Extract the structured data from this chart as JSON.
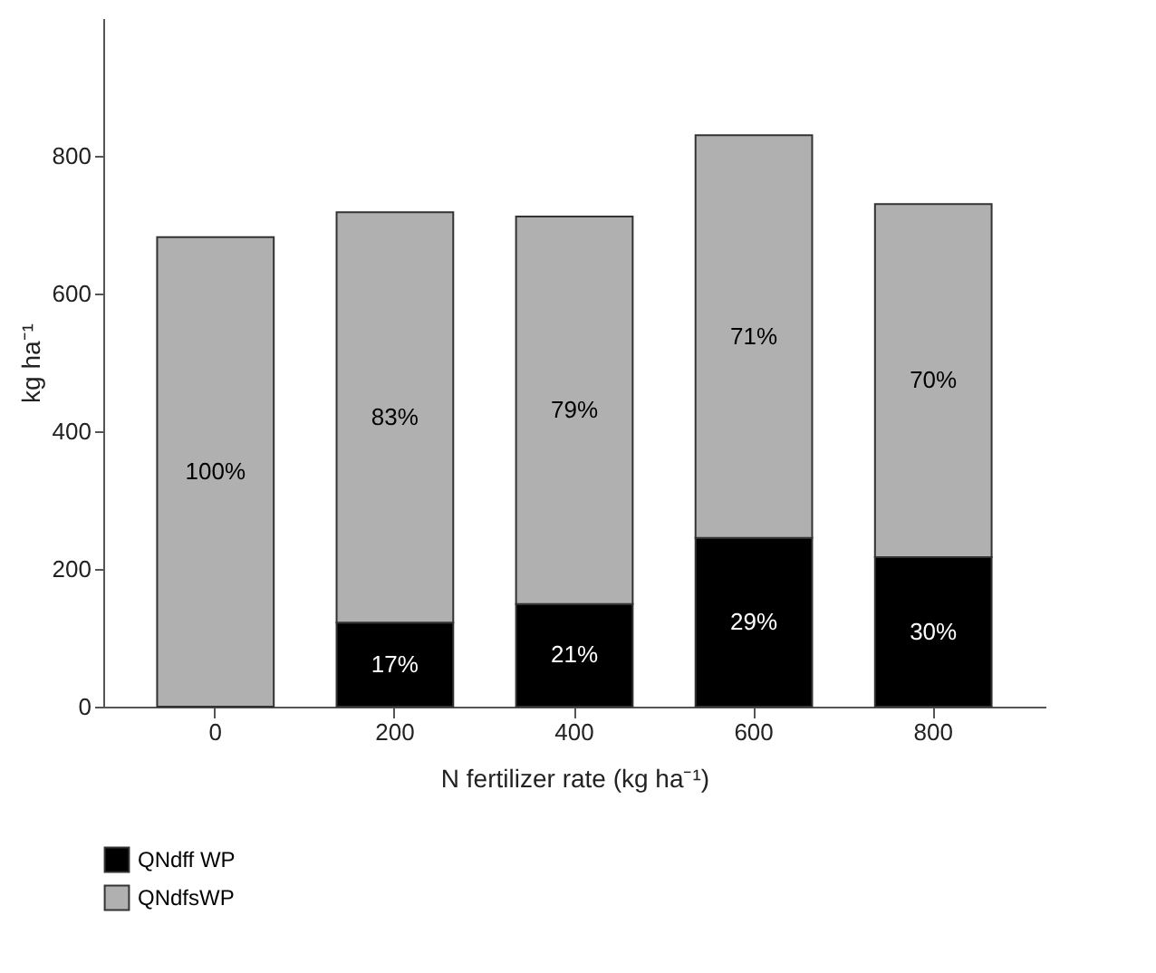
{
  "chart_data": {
    "type": "bar",
    "stacked": true,
    "xlabel": "N fertilizer rate (kg ha⁻¹)",
    "ylabel": "kg ha⁻¹",
    "categories": [
      "0",
      "200",
      "400",
      "600",
      "800"
    ],
    "series": [
      {
        "name": "QNdff WP",
        "color": "#000000",
        "values": [
          0,
          122,
          149,
          245,
          217
        ]
      },
      {
        "name": "QNdfsWP",
        "color": "#b0b0b0",
        "values": [
          682,
          596,
          563,
          585,
          513
        ]
      }
    ],
    "annotations": [
      "17%",
      "21%",
      "29%",
      "30%",
      "100%",
      "83%",
      "79%",
      "71%",
      "70%"
    ],
    "ylim": [
      0,
      1000
    ],
    "yticks": [
      0,
      200,
      400,
      600,
      800
    ],
    "grid": false,
    "legend": "bottom"
  }
}
